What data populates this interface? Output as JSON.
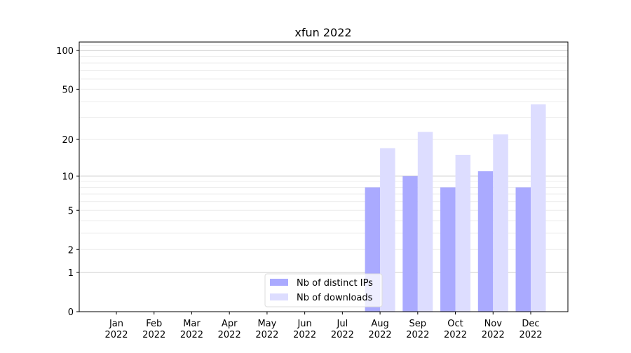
{
  "chart_data": {
    "type": "bar",
    "title": "xfun 2022",
    "xlabel": "",
    "ylabel": "",
    "yscale": "symlog",
    "ylim": [
      0,
      116
    ],
    "yticks": [
      0,
      1,
      2,
      5,
      10,
      20,
      50,
      100
    ],
    "grid": true,
    "legend_position": "bottom-center",
    "categories": [
      "Jan\n2022",
      "Feb\n2022",
      "Mar\n2022",
      "Apr\n2022",
      "May\n2022",
      "Jun\n2022",
      "Jul\n2022",
      "Aug\n2022",
      "Sep\n2022",
      "Oct\n2022",
      "Nov\n2022",
      "Dec\n2022"
    ],
    "series": [
      {
        "name": "Nb of distinct IPs",
        "color": "#aaaaff",
        "values": [
          0,
          0,
          0,
          0,
          0,
          0,
          0,
          8,
          10,
          8,
          11,
          8
        ]
      },
      {
        "name": "Nb of downloads",
        "color": "#ddddff",
        "values": [
          0,
          0,
          0,
          0,
          0,
          0,
          0,
          17,
          23,
          15,
          22,
          38
        ]
      }
    ]
  }
}
